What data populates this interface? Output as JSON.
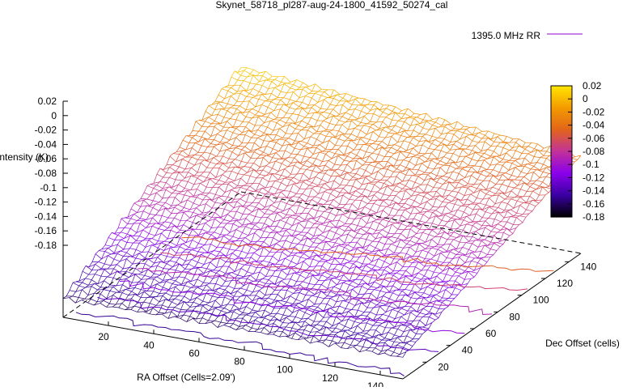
{
  "chart_data": {
    "type": "surface3d",
    "title": "Skynet_58718_pl287-aug-24-1800_41592_50274_cal",
    "xlabel": "RA Offset (Cells=2.09')",
    "ylabel": "Dec Offset (cells)",
    "zlabel": "Intensity (K)",
    "legend": "1395.0 MHz RR",
    "legend_color": "#9400d3",
    "x_ticks": [
      "20",
      "40",
      "60",
      "80",
      "100",
      "120",
      "140"
    ],
    "y_ticks": [
      "20",
      "40",
      "60",
      "80",
      "100",
      "120",
      "140"
    ],
    "z_ticks": [
      "0.02",
      "0",
      "-0.02",
      "-0.04",
      "-0.06",
      "-0.08",
      "-0.1",
      "-0.12",
      "-0.14",
      "-0.16",
      "-0.18"
    ],
    "cb_ticks": [
      "0.02",
      "0",
      "-0.02",
      "-0.04",
      "-0.06",
      "-0.08",
      "-0.1",
      "-0.12",
      "-0.14",
      "-0.16",
      "-0.18"
    ],
    "xlim": [
      0,
      150
    ],
    "ylim": [
      0,
      150
    ],
    "zlim": [
      -0.19,
      0.02
    ],
    "colorbar_range": [
      -0.18,
      0.02
    ],
    "palette": [
      "#000000",
      "#3b00a4",
      "#8a00ea",
      "#c2329a",
      "#e2651a",
      "#f39b00",
      "#ffe600"
    ],
    "surface_model": {
      "z_at_x0_y0": -0.16,
      "z_at_x150_y0": -0.155,
      "z_at_x0_y150": 0.01,
      "z_at_x150_y150": -0.035
    },
    "contours": [
      -0.15,
      -0.13,
      -0.11,
      -0.09,
      -0.07,
      -0.05
    ]
  }
}
